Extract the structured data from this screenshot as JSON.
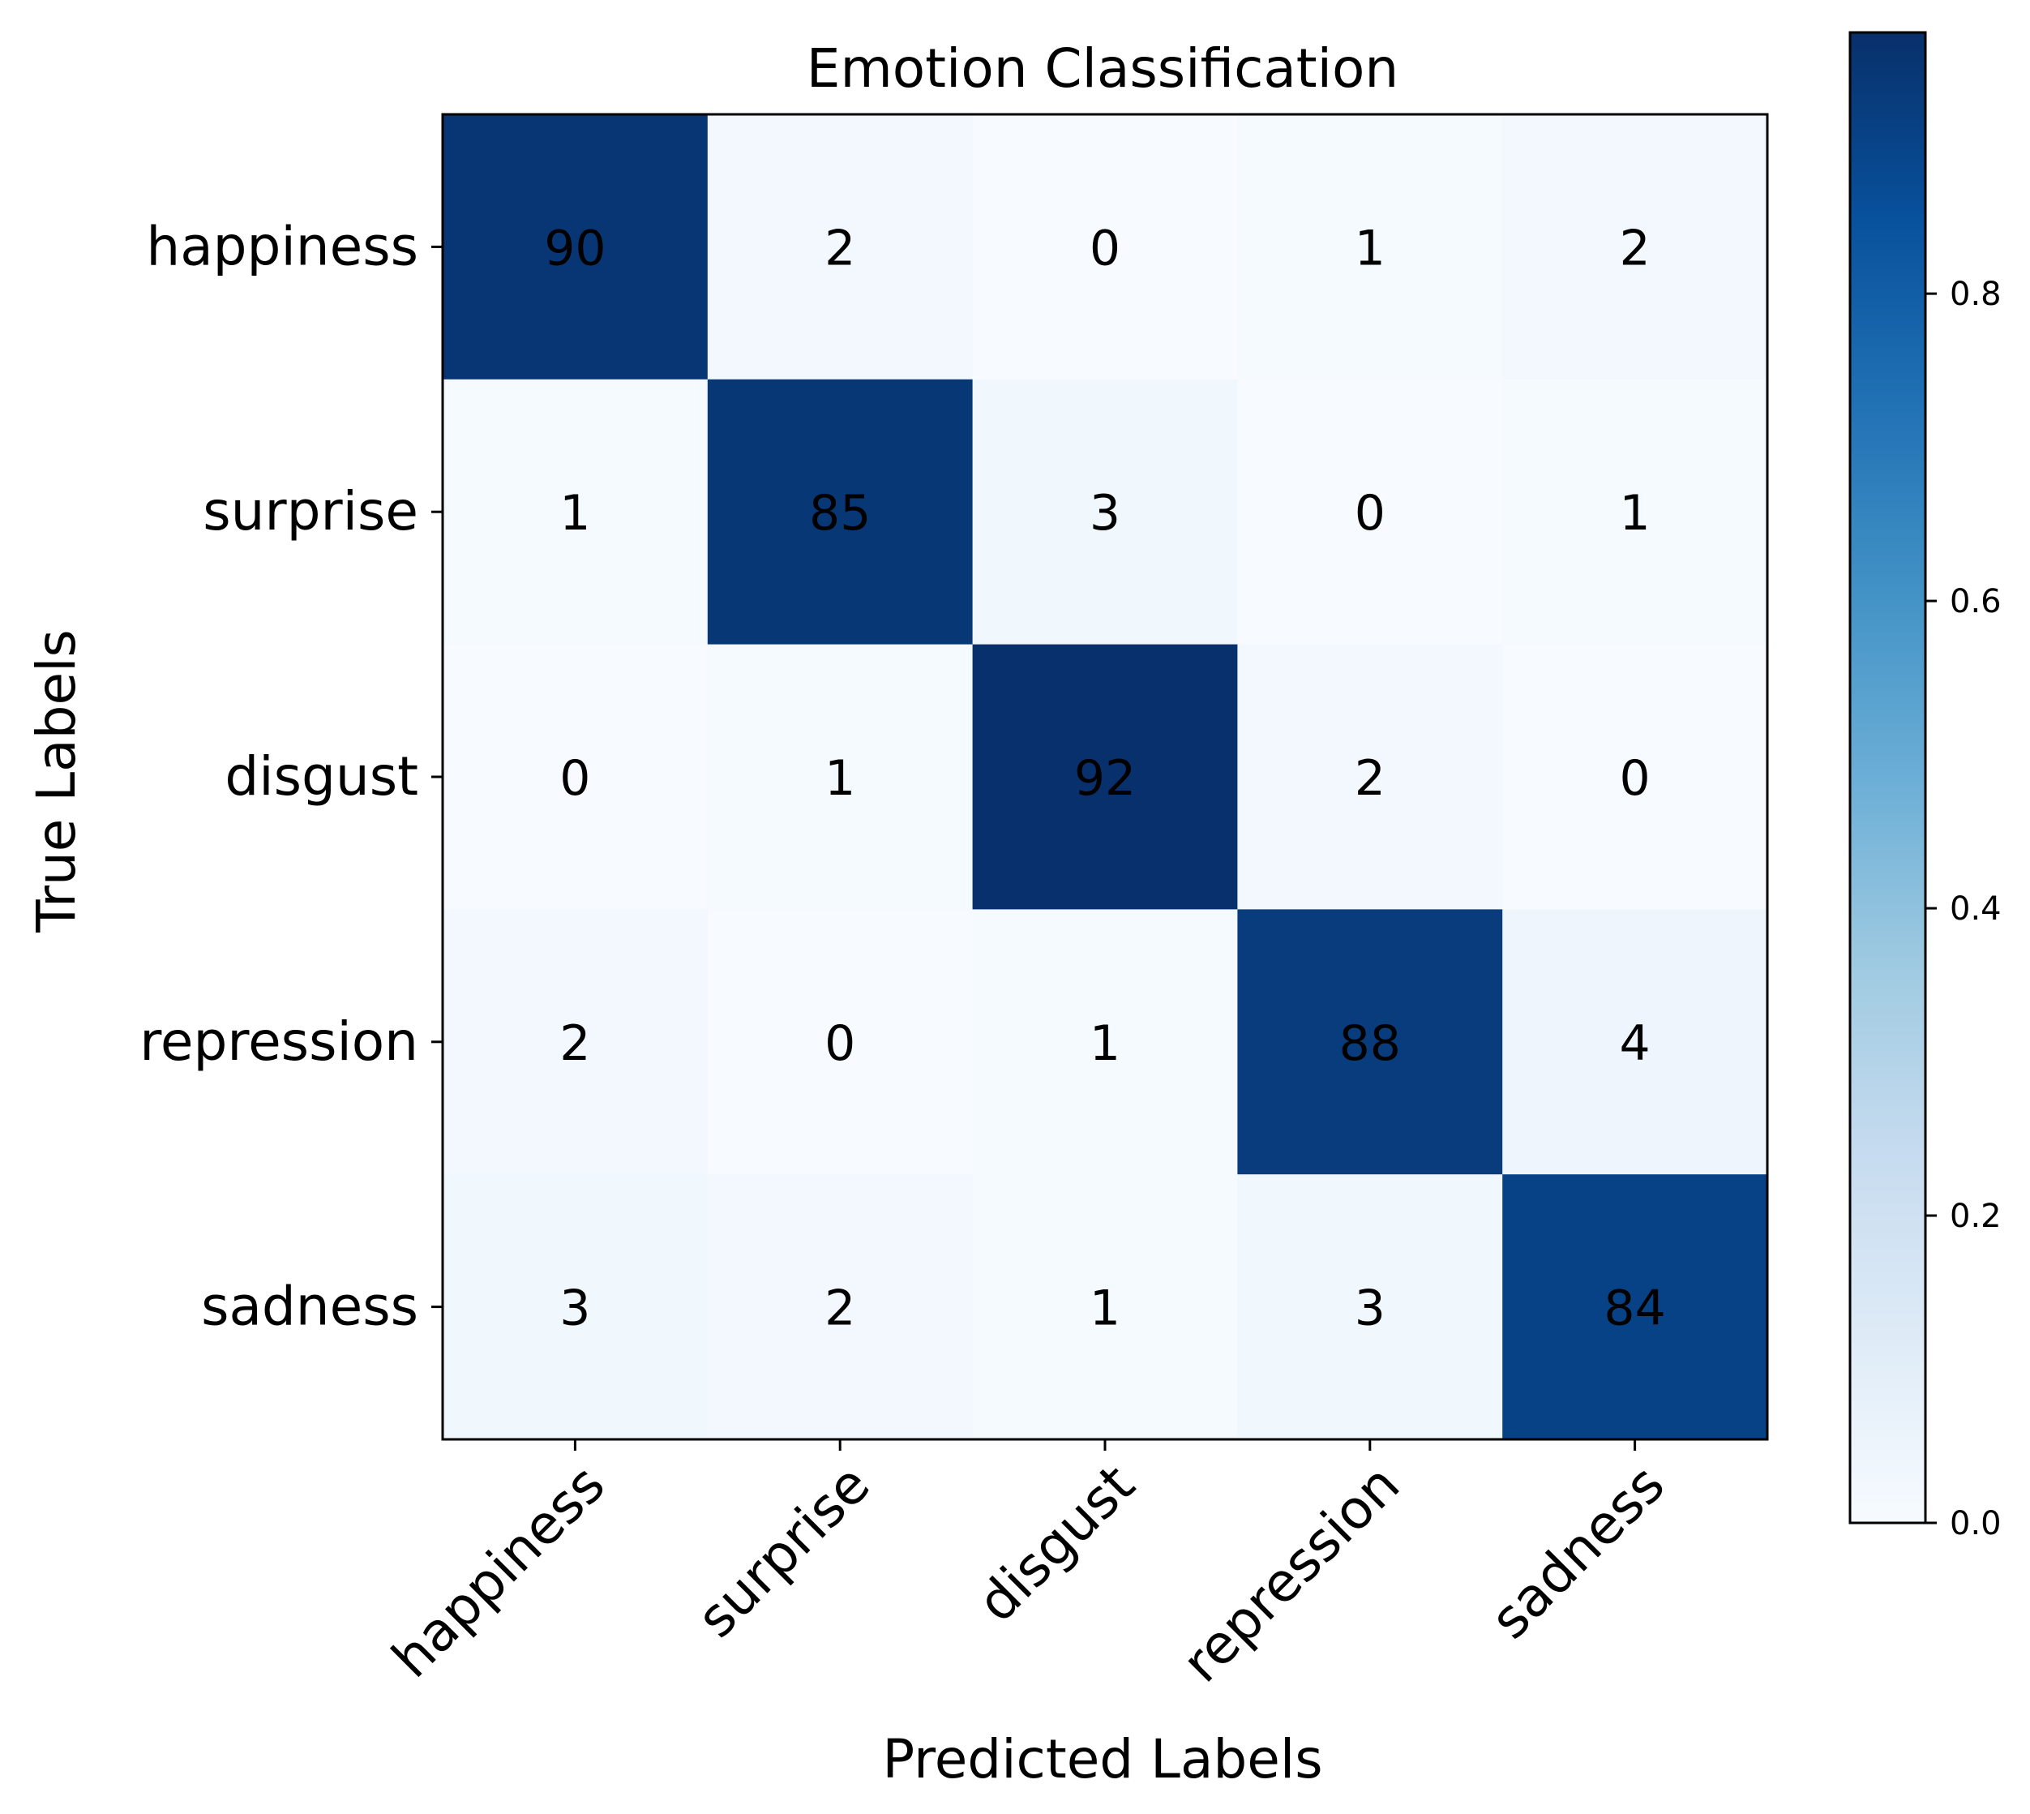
{
  "chart_data": {
    "type": "heatmap",
    "title": "Emotion Classification",
    "xlabel": "Predicted Labels",
    "ylabel": "True Labels",
    "x_categories": [
      "happiness",
      "surprise",
      "disgust",
      "repression",
      "sadness"
    ],
    "y_categories": [
      "happiness",
      "surprise",
      "disgust",
      "repression",
      "sadness"
    ],
    "values": [
      [
        90,
        2,
        0,
        1,
        2
      ],
      [
        1,
        85,
        3,
        0,
        1
      ],
      [
        0,
        1,
        92,
        2,
        0
      ],
      [
        2,
        0,
        1,
        88,
        4
      ],
      [
        3,
        2,
        1,
        3,
        84
      ]
    ],
    "colorbar": {
      "colormap": "Blues",
      "range": [
        0.0,
        0.97
      ],
      "ticks": [
        0.0,
        0.2,
        0.4,
        0.6,
        0.8
      ],
      "tick_labels": [
        "0.0",
        "0.2",
        "0.4",
        "0.6",
        "0.8"
      ]
    },
    "grid": false,
    "legend": "colorbar-right"
  }
}
